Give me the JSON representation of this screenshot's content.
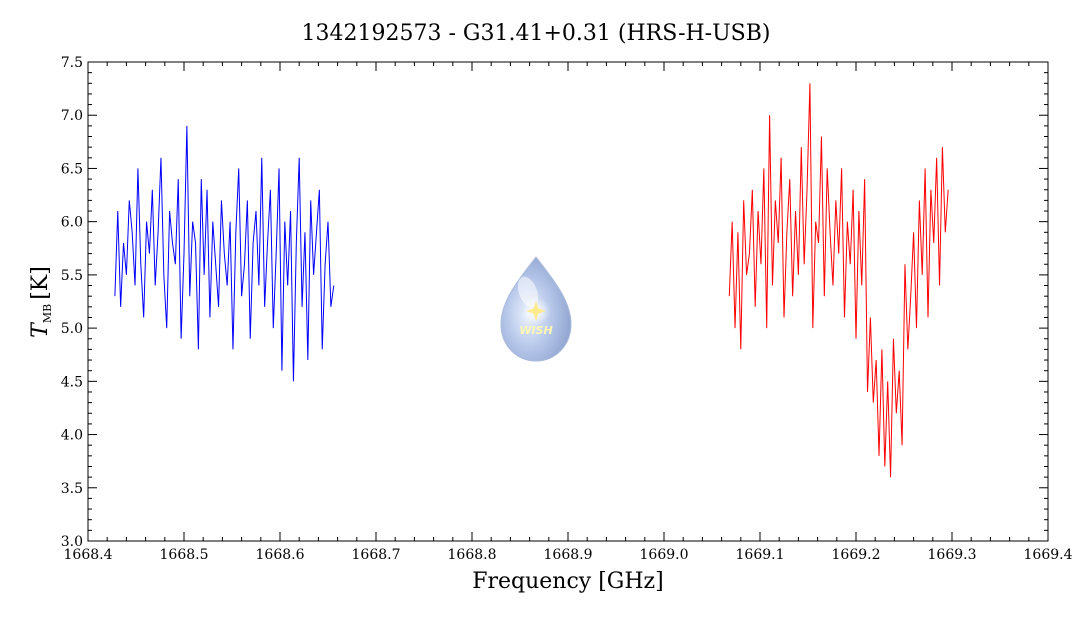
{
  "chart_data": {
    "type": "line",
    "title": "1342192573 - G31.41+0.31 (HRS-H-USB)",
    "xlabel": "Frequency [GHz]",
    "ylabel_symbol": "T",
    "ylabel_subscript": "MB",
    "ylabel_unit": "[K]",
    "xlim": [
      1668.4,
      1669.4
    ],
    "ylim": [
      3.0,
      7.5
    ],
    "x_ticks": [
      "1668.4",
      "1668.5",
      "1668.6",
      "1668.7",
      "1668.8",
      "1668.9",
      "1669.0",
      "1669.1",
      "1669.2",
      "1669.3",
      "1669.4"
    ],
    "y_ticks": [
      "3.0",
      "3.5",
      "4.0",
      "4.5",
      "5.0",
      "5.5",
      "6.0",
      "6.5",
      "7.0",
      "7.5"
    ],
    "grid": false,
    "logo_text": "WISH",
    "series": [
      {
        "color": "#0000ff",
        "x": [
          1668.428,
          1668.431,
          1668.434,
          1668.437,
          1668.44,
          1668.443,
          1668.446,
          1668.449,
          1668.452,
          1668.455,
          1668.458,
          1668.461,
          1668.464,
          1668.467,
          1668.47,
          1668.473,
          1668.476,
          1668.479,
          1668.482,
          1668.485,
          1668.488,
          1668.491,
          1668.494,
          1668.497,
          1668.5,
          1668.503,
          1668.506,
          1668.509,
          1668.512,
          1668.515,
          1668.518,
          1668.521,
          1668.524,
          1668.527,
          1668.53,
          1668.533,
          1668.536,
          1668.539,
          1668.542,
          1668.545,
          1668.548,
          1668.551,
          1668.554,
          1668.557,
          1668.56,
          1668.563,
          1668.566,
          1668.569,
          1668.572,
          1668.575,
          1668.578,
          1668.581,
          1668.584,
          1668.587,
          1668.59,
          1668.593,
          1668.596,
          1668.599,
          1668.602,
          1668.605,
          1668.608,
          1668.611,
          1668.614,
          1668.617,
          1668.62,
          1668.623,
          1668.626,
          1668.629,
          1668.632,
          1668.635,
          1668.638,
          1668.641,
          1668.644,
          1668.647,
          1668.65,
          1668.653,
          1668.656
        ],
        "y": [
          5.3,
          6.1,
          5.2,
          5.8,
          5.5,
          6.2,
          5.9,
          5.4,
          6.5,
          5.6,
          5.1,
          6.0,
          5.7,
          6.3,
          5.4,
          5.9,
          6.6,
          5.5,
          5.0,
          6.1,
          5.8,
          5.6,
          6.4,
          4.9,
          5.7,
          6.9,
          5.3,
          6.0,
          5.8,
          4.8,
          6.4,
          5.5,
          6.3,
          5.1,
          6.0,
          5.6,
          5.2,
          6.2,
          5.7,
          5.4,
          6.0,
          4.8,
          5.9,
          6.5,
          5.3,
          5.6,
          6.2,
          4.9,
          5.8,
          6.1,
          5.4,
          6.6,
          5.2,
          5.8,
          6.3,
          5.0,
          5.7,
          6.5,
          4.6,
          6.0,
          5.4,
          6.1,
          4.5,
          5.8,
          6.6,
          5.2,
          5.9,
          4.7,
          6.2,
          5.5,
          5.9,
          6.3,
          4.8,
          5.6,
          6.0,
          5.2,
          5.4
        ]
      },
      {
        "color": "#ff0000",
        "x": [
          1669.068,
          1669.071,
          1669.074,
          1669.077,
          1669.08,
          1669.083,
          1669.086,
          1669.089,
          1669.092,
          1669.095,
          1669.098,
          1669.101,
          1669.104,
          1669.107,
          1669.11,
          1669.113,
          1669.116,
          1669.119,
          1669.122,
          1669.125,
          1669.128,
          1669.131,
          1669.134,
          1669.137,
          1669.14,
          1669.143,
          1669.146,
          1669.149,
          1669.152,
          1669.155,
          1669.158,
          1669.161,
          1669.164,
          1669.167,
          1669.17,
          1669.173,
          1669.176,
          1669.179,
          1669.182,
          1669.185,
          1669.188,
          1669.191,
          1669.194,
          1669.197,
          1669.2,
          1669.203,
          1669.206,
          1669.209,
          1669.212,
          1669.215,
          1669.218,
          1669.221,
          1669.224,
          1669.227,
          1669.23,
          1669.233,
          1669.236,
          1669.239,
          1669.242,
          1669.245,
          1669.248,
          1669.251,
          1669.254,
          1669.257,
          1669.26,
          1669.263,
          1669.266,
          1669.269,
          1669.272,
          1669.275,
          1669.278,
          1669.281,
          1669.284,
          1669.287,
          1669.29,
          1669.293,
          1669.296
        ],
        "y": [
          5.3,
          6.0,
          5.0,
          5.9,
          4.8,
          6.2,
          5.5,
          5.7,
          6.3,
          5.2,
          6.1,
          5.6,
          6.5,
          5.0,
          7.0,
          5.4,
          6.2,
          5.8,
          6.6,
          5.1,
          5.9,
          6.4,
          5.3,
          6.1,
          5.5,
          6.7,
          5.6,
          6.3,
          7.3,
          5.0,
          6.0,
          5.8,
          6.8,
          5.3,
          6.5,
          5.9,
          5.4,
          6.2,
          5.7,
          6.5,
          5.1,
          6.0,
          5.6,
          6.3,
          4.9,
          6.1,
          5.4,
          6.4,
          4.4,
          5.1,
          4.3,
          4.7,
          3.8,
          4.8,
          3.7,
          4.5,
          3.6,
          4.9,
          4.2,
          4.6,
          3.9,
          5.6,
          4.8,
          5.3,
          5.9,
          5.0,
          6.2,
          5.5,
          6.5,
          5.1,
          6.3,
          5.8,
          6.6,
          5.4,
          6.7,
          5.9,
          6.3
        ]
      }
    ]
  }
}
